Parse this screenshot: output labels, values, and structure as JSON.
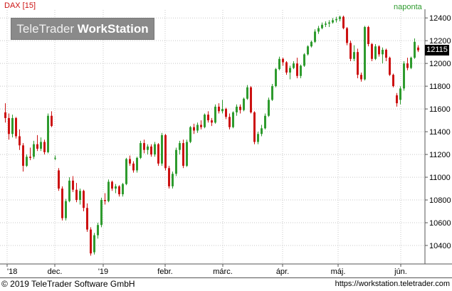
{
  "header": {
    "instrument": "DAX [15]",
    "period": "naponta",
    "watermark_light": "TeleTrader",
    "watermark_bold": "WorkStation"
  },
  "last_price": "12115",
  "footer": {
    "copyright": "© 2019 TeleTrader Software GmbH",
    "url": "https://workstation.teletrader.com"
  },
  "colors": {
    "up": "#2e9b2e",
    "down": "#cc1111",
    "grid": "#c8c8c8",
    "instrument_text": "#cc1111",
    "period_text": "#2e9b2e"
  },
  "chart_data": {
    "type": "candlestick",
    "ylim": [
      10250,
      12470
    ],
    "y_ticks": [
      "10400",
      "10600",
      "10800",
      "11000",
      "11200",
      "11400",
      "11600",
      "11800",
      "12000",
      "12200",
      "12400"
    ],
    "x_ticks": [
      "'18",
      "dec.",
      "'19",
      "febr.",
      "márc.",
      "ápr.",
      "máj.",
      "jún."
    ],
    "grid": true,
    "candles": [
      [
        11570,
        11650,
        11480,
        11520
      ],
      [
        11520,
        11560,
        11330,
        11380
      ],
      [
        11380,
        11550,
        11350,
        11520
      ],
      [
        11520,
        11530,
        11340,
        11360
      ],
      [
        11360,
        11420,
        11240,
        11280
      ],
      [
        11280,
        11300,
        11050,
        11100
      ],
      [
        11100,
        11200,
        11090,
        11180
      ],
      [
        11180,
        11260,
        11150,
        11170
      ],
      [
        11180,
        11320,
        11160,
        11290
      ],
      [
        11290,
        11370,
        11230,
        11250
      ],
      [
        11250,
        11350,
        11230,
        11310
      ],
      [
        11310,
        11330,
        11200,
        11220
      ],
      [
        11220,
        11560,
        11210,
        11540
      ],
      [
        11540,
        11580,
        11440,
        11450
      ],
      [
        11170,
        11190,
        11150,
        11170
      ],
      [
        11060,
        11080,
        10880,
        10900
      ],
      [
        10900,
        10920,
        10620,
        10640
      ],
      [
        10640,
        10810,
        10620,
        10790
      ],
      [
        10790,
        11000,
        10780,
        10970
      ],
      [
        10970,
        11010,
        10870,
        10890
      ],
      [
        10890,
        10950,
        10780,
        10800
      ],
      [
        10800,
        10900,
        10760,
        10880
      ],
      [
        10880,
        10890,
        10700,
        10730
      ],
      [
        10730,
        10770,
        10520,
        10540
      ],
      [
        10540,
        10560,
        10310,
        10330
      ],
      [
        10340,
        10510,
        10320,
        10490
      ],
      [
        10490,
        10600,
        10460,
        10580
      ],
      [
        10580,
        10820,
        10560,
        10800
      ],
      [
        10800,
        10860,
        10760,
        10790
      ],
      [
        10790,
        10980,
        10780,
        10960
      ],
      [
        10960,
        10970,
        10880,
        10900
      ],
      [
        10900,
        10940,
        10860,
        10920
      ],
      [
        10920,
        10930,
        10830,
        10850
      ],
      [
        10850,
        10950,
        10830,
        10940
      ],
      [
        10940,
        11170,
        10930,
        11160
      ],
      [
        11160,
        11190,
        11100,
        11120
      ],
      [
        11120,
        11140,
        11040,
        11060
      ],
      [
        11060,
        11180,
        11040,
        11170
      ],
      [
        11170,
        11320,
        11160,
        11300
      ],
      [
        11300,
        11330,
        11210,
        11240
      ],
      [
        11240,
        11290,
        11200,
        11270
      ],
      [
        11270,
        11290,
        11180,
        11200
      ],
      [
        11200,
        11310,
        11180,
        11290
      ],
      [
        11290,
        11300,
        11100,
        11120
      ],
      [
        11120,
        11390,
        11100,
        11370
      ],
      [
        11370,
        11380,
        11060,
        11080
      ],
      [
        11080,
        11100,
        10900,
        10920
      ],
      [
        10920,
        11050,
        10900,
        11030
      ],
      [
        11030,
        11260,
        11010,
        11240
      ],
      [
        11240,
        11320,
        11200,
        11300
      ],
      [
        11300,
        11330,
        11080,
        11100
      ],
      [
        11100,
        11330,
        11090,
        11310
      ],
      [
        11310,
        11450,
        11300,
        11440
      ],
      [
        11440,
        11470,
        11380,
        11410
      ],
      [
        11410,
        11480,
        11390,
        11460
      ],
      [
        11460,
        11500,
        11420,
        11440
      ],
      [
        11440,
        11560,
        11430,
        11550
      ],
      [
        11550,
        11580,
        11480,
        11500
      ],
      [
        11500,
        11520,
        11450,
        11480
      ],
      [
        11480,
        11640,
        11470,
        11620
      ],
      [
        11620,
        11650,
        11560,
        11580
      ],
      [
        11580,
        11680,
        11560,
        11600
      ],
      [
        11600,
        11610,
        11510,
        11530
      ],
      [
        11530,
        11560,
        11420,
        11440
      ],
      [
        11440,
        11580,
        11430,
        11570
      ],
      [
        11570,
        11640,
        11540,
        11620
      ],
      [
        11620,
        11640,
        11560,
        11590
      ],
      [
        11590,
        11700,
        11580,
        11690
      ],
      [
        11690,
        11810,
        11680,
        11790
      ],
      [
        11790,
        11800,
        11560,
        11570
      ],
      [
        11570,
        11580,
        11290,
        11310
      ],
      [
        11310,
        11400,
        11290,
        11380
      ],
      [
        11380,
        11460,
        11360,
        11430
      ],
      [
        11430,
        11560,
        11420,
        11540
      ],
      [
        11540,
        11700,
        11530,
        11680
      ],
      [
        11680,
        11820,
        11670,
        11800
      ],
      [
        11800,
        11960,
        11790,
        11950
      ],
      [
        11950,
        12060,
        11940,
        12040
      ],
      [
        12040,
        12050,
        11980,
        12010
      ],
      [
        12010,
        12020,
        11900,
        11920
      ],
      [
        11920,
        11980,
        11860,
        11960
      ],
      [
        11960,
        12020,
        11950,
        12000
      ],
      [
        12000,
        12050,
        11870,
        11890
      ],
      [
        11890,
        11990,
        11870,
        11980
      ],
      [
        11980,
        12090,
        11970,
        12080
      ],
      [
        12080,
        12160,
        12070,
        12150
      ],
      [
        12150,
        12200,
        12140,
        12190
      ],
      [
        12190,
        12300,
        12180,
        12280
      ],
      [
        12280,
        12330,
        12260,
        12310
      ],
      [
        12310,
        12360,
        12300,
        12340
      ],
      [
        12340,
        12370,
        12320,
        12350
      ],
      [
        12350,
        12380,
        12320,
        12360
      ],
      [
        12360,
        12400,
        12350,
        12380
      ],
      [
        12380,
        12410,
        12360,
        12390
      ],
      [
        12390,
        12420,
        12370,
        12410
      ],
      [
        12410,
        12420,
        12300,
        12310
      ],
      [
        12310,
        12320,
        12160,
        12180
      ],
      [
        12180,
        12200,
        12020,
        12040
      ],
      [
        12040,
        12160,
        12020,
        12100
      ],
      [
        12100,
        12130,
        11870,
        11900
      ],
      [
        11900,
        11920,
        11840,
        11860
      ],
      [
        11860,
        12330,
        11850,
        12320
      ],
      [
        12320,
        12330,
        12150,
        12170
      ],
      [
        12170,
        12180,
        12020,
        12040
      ],
      [
        12040,
        12170,
        12030,
        12150
      ],
      [
        12150,
        12160,
        12060,
        12080
      ],
      [
        12080,
        12140,
        12000,
        12120
      ],
      [
        12120,
        12130,
        12020,
        12050
      ],
      [
        12050,
        12060,
        11890,
        11900
      ],
      [
        11900,
        11910,
        11790,
        11800
      ],
      [
        11720,
        11740,
        11620,
        11650
      ],
      [
        11680,
        11800,
        11640,
        11780
      ],
      [
        11780,
        12020,
        11760,
        12000
      ],
      [
        12000,
        12050,
        11940,
        11960
      ],
      [
        11960,
        12060,
        11950,
        12050
      ],
      [
        12050,
        12220,
        12040,
        12190
      ],
      [
        12140,
        12160,
        12100,
        12115
      ]
    ]
  }
}
